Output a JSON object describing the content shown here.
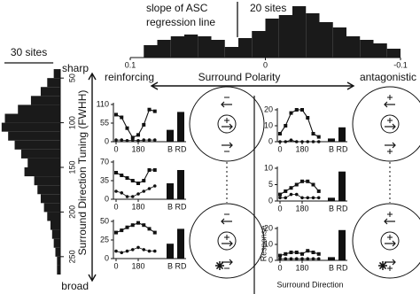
{
  "chart_data": [
    {
      "type": "histogram",
      "orientation": "vertical",
      "title_lines": [
        "slope of ASC",
        "regression line"
      ],
      "bins": [
        0.09,
        0.08,
        0.07,
        0.06,
        0.05,
        0.04,
        0.03,
        0.02,
        0.01,
        0,
        -0.01,
        -0.02,
        -0.03,
        -0.04,
        -0.05,
        -0.06,
        -0.07,
        -0.08,
        -0.09,
        -0.1
      ],
      "values": [
        7,
        10,
        12,
        13,
        12,
        10,
        6,
        11,
        15,
        22,
        24,
        29,
        25,
        20,
        17,
        12,
        10,
        8,
        5
      ],
      "xlim": [
        0.1,
        -0.1
      ],
      "xticks": [
        0.1,
        0,
        -0.1
      ],
      "ylim": [
        0,
        30
      ],
      "scale_bar": {
        "value": 20,
        "label": "20 sites"
      },
      "color": "#1a1a1a"
    },
    {
      "type": "histogram",
      "orientation": "horizontal",
      "ylabel": "Surround Direction Tuning (FWHH)",
      "top_label": "sharp",
      "bottom_label": "broad",
      "bins": [
        40,
        50,
        60,
        70,
        80,
        90,
        100,
        110,
        120,
        130,
        140,
        150,
        160,
        170,
        180,
        190,
        200,
        210,
        220,
        230,
        240,
        250,
        260,
        270
      ],
      "values": [
        4,
        8,
        12,
        18,
        26,
        34,
        36,
        32,
        28,
        24,
        20,
        22,
        16,
        14,
        12,
        10,
        8,
        6,
        5,
        4,
        3,
        2,
        2
      ],
      "ylim": [
        30,
        270
      ],
      "yticks": [
        50,
        100,
        150,
        200,
        250
      ],
      "xlim": [
        0,
        37
      ],
      "scale_bar": {
        "value": 30,
        "label": "30 sites"
      },
      "color": "#1a1a1a"
    },
    {
      "type": "line",
      "x": [
        0,
        45,
        90,
        135,
        180,
        225,
        270,
        315
      ],
      "xlim": [
        0,
        360
      ],
      "xticks": [
        0,
        180
      ],
      "series": [
        {
          "values": [
            80,
            72,
            40,
            12,
            20,
            50,
            95,
            90
          ]
        },
        {
          "values": [
            5,
            5,
            3,
            5,
            3,
            5,
            5,
            5
          ]
        }
      ],
      "bars": {
        "categories": [
          "B",
          "RD"
        ],
        "values": [
          35,
          88
        ]
      },
      "ylim": [
        0,
        110
      ],
      "yticks": [
        0,
        55,
        110
      ]
    },
    {
      "type": "line",
      "x": [
        0,
        45,
        90,
        135,
        180,
        225,
        270,
        315
      ],
      "xlim": [
        0,
        360
      ],
      "xticks": [
        0,
        180
      ],
      "series": [
        {
          "values": [
            50,
            45,
            40,
            35,
            30,
            35,
            55,
            55
          ]
        },
        {
          "values": [
            15,
            12,
            5,
            5,
            10,
            15,
            20,
            25
          ]
        }
      ],
      "bars": {
        "categories": [
          "B",
          "RD"
        ],
        "values": [
          30,
          55
        ]
      },
      "ylim": [
        0,
        70
      ],
      "yticks": [
        0,
        35,
        70
      ]
    },
    {
      "type": "line",
      "x": [
        0,
        45,
        90,
        135,
        180,
        225,
        270,
        315
      ],
      "xlim": [
        0,
        360
      ],
      "xticks": [
        0,
        180
      ],
      "series": [
        {
          "values": [
            35,
            38,
            42,
            45,
            48,
            45,
            40,
            35
          ]
        },
        {
          "values": [
            10,
            8,
            10,
            12,
            15,
            12,
            10,
            10
          ]
        }
      ],
      "bars": {
        "categories": [
          "B",
          "RD"
        ],
        "values": [
          20,
          40
        ]
      },
      "ylim": [
        0,
        50
      ],
      "yticks": [
        0,
        25,
        50
      ]
    },
    {
      "type": "line",
      "x": [
        0,
        45,
        90,
        135,
        180,
        225,
        270,
        315
      ],
      "xlim": [
        0,
        360
      ],
      "xticks": [
        0,
        180
      ],
      "series": [
        {
          "values": [
            5,
            10,
            18,
            20,
            20,
            15,
            5,
            3
          ]
        },
        {
          "values": [
            0,
            0,
            1,
            0,
            0,
            0,
            0,
            0
          ]
        }
      ],
      "bars": {
        "categories": [
          "B",
          "RD"
        ],
        "values": [
          2,
          9
        ]
      },
      "ylim": [
        0,
        20
      ],
      "yticks": [
        0,
        10,
        20
      ]
    },
    {
      "type": "line",
      "x": [
        0,
        45,
        90,
        135,
        180,
        225,
        270,
        315
      ],
      "xlim": [
        0,
        360
      ],
      "xticks": [
        0,
        180
      ],
      "series": [
        {
          "values": [
            2,
            3,
            4,
            5,
            6,
            6,
            5,
            3
          ]
        },
        {
          "values": [
            1,
            1,
            2,
            2,
            1,
            1,
            1,
            1
          ]
        }
      ],
      "bars": {
        "categories": [
          "B",
          "RD"
        ],
        "values": [
          1,
          9
        ]
      },
      "ylim": [
        0,
        10
      ],
      "yticks": [
        0,
        5,
        10
      ]
    },
    {
      "type": "line",
      "x": [
        0,
        45,
        90,
        135,
        180,
        225,
        270,
        315
      ],
      "xlim": [
        0,
        360
      ],
      "xticks": [
        0,
        180
      ],
      "series": [
        {
          "values": [
            3,
            4,
            5,
            5,
            4,
            6,
            5,
            4
          ]
        },
        {
          "values": [
            1,
            1,
            1,
            1,
            1,
            1,
            1,
            1
          ]
        }
      ],
      "bars": {
        "categories": [
          "B",
          "RD"
        ],
        "values": [
          2,
          19
        ]
      },
      "ylim": [
        0,
        20
      ],
      "yticks": [
        0,
        10,
        20
      ],
      "ylabel": "Response",
      "xlabel": "Surround Direction"
    }
  ],
  "annotations": {
    "left": "reinforcing",
    "center": "Surround Polarity",
    "right": "antagonistic"
  }
}
